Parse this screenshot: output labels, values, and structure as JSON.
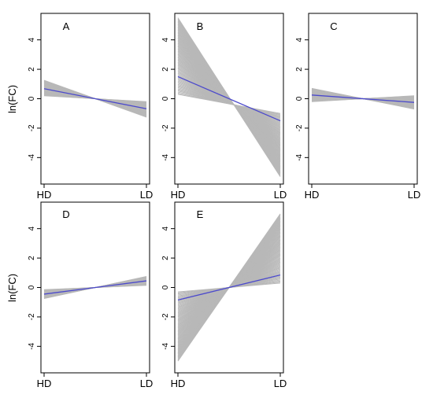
{
  "chart_data": [
    {
      "type": "line",
      "panel_label": "A",
      "categories": [
        "HD",
        "LD"
      ],
      "ylabel": "ln(FC)",
      "ylim": [
        -5.8,
        5.8
      ],
      "yticks": [
        -4,
        -2,
        0,
        2,
        4
      ],
      "mean_line": [
        0.68,
        -0.68
      ],
      "bundle": {
        "count": 40,
        "hd_min": 0.2,
        "hd_max": 1.25,
        "ld_min": -1.25,
        "ld_max": -0.2
      },
      "colors": {
        "mean": "#4b49cc",
        "bundle": "#b8b8b8"
      }
    },
    {
      "type": "line",
      "panel_label": "B",
      "categories": [
        "HD",
        "LD"
      ],
      "ylabel": "",
      "ylim": [
        -5.8,
        5.8
      ],
      "yticks": [
        -4,
        -2,
        0,
        2,
        4
      ],
      "mean_line": [
        1.5,
        -1.5
      ],
      "bundle": {
        "count": 70,
        "hd_min": 0.3,
        "hd_max": 5.5,
        "ld_min": -5.3,
        "ld_max": -1.0
      },
      "colors": {
        "mean": "#4b49cc",
        "bundle": "#b8b8b8"
      }
    },
    {
      "type": "line",
      "panel_label": "C",
      "categories": [
        "HD",
        "LD"
      ],
      "ylabel": "",
      "ylim": [
        -5.8,
        5.8
      ],
      "yticks": [
        -4,
        -2,
        0,
        2,
        4
      ],
      "mean_line": [
        0.25,
        -0.25
      ],
      "bundle": {
        "count": 40,
        "hd_min": -0.2,
        "hd_max": 0.7,
        "ld_min": -0.7,
        "ld_max": 0.2
      },
      "colors": {
        "mean": "#4b49cc",
        "bundle": "#b8b8b8"
      }
    },
    {
      "type": "line",
      "panel_label": "D",
      "categories": [
        "HD",
        "LD"
      ],
      "ylabel": "ln(FC)",
      "ylim": [
        -5.8,
        5.8
      ],
      "yticks": [
        -4,
        -2,
        0,
        2,
        4
      ],
      "mean_line": [
        -0.45,
        0.45
      ],
      "bundle": {
        "count": 40,
        "hd_min": -0.75,
        "hd_max": -0.15,
        "ld_min": 0.15,
        "ld_max": 0.75
      },
      "colors": {
        "mean": "#4b49cc",
        "bundle": "#b8b8b8"
      }
    },
    {
      "type": "line",
      "panel_label": "E",
      "categories": [
        "HD",
        "LD"
      ],
      "ylabel": "",
      "ylim": [
        -5.8,
        5.8
      ],
      "yticks": [
        -4,
        -2,
        0,
        2,
        4
      ],
      "mean_line": [
        -0.85,
        0.85
      ],
      "bundle": {
        "count": 70,
        "hd_min": -5.0,
        "hd_max": -0.3,
        "ld_min": 0.3,
        "ld_max": 5.0
      },
      "colors": {
        "mean": "#4b49cc",
        "bundle": "#b8b8b8"
      }
    }
  ]
}
